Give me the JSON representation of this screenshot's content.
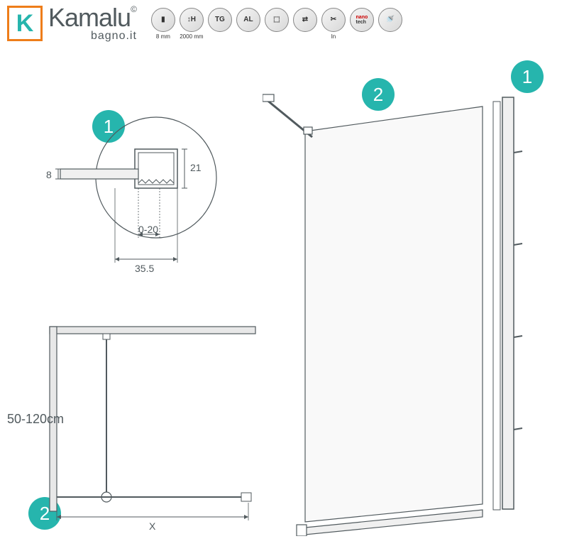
{
  "brand": {
    "letter": "K",
    "name": "Kamalu",
    "copyright": "©",
    "sub": "bagno.it"
  },
  "specs": [
    {
      "icon": "▮",
      "label": "8 mm"
    },
    {
      "icon": "↕H",
      "label": "2000 mm"
    },
    {
      "icon": "TG",
      "label": ""
    },
    {
      "icon": "AL",
      "label": ""
    },
    {
      "icon": "⬚",
      "label": ""
    },
    {
      "icon": "⇄",
      "label": ""
    },
    {
      "icon": "✂",
      "label": "In"
    },
    {
      "icon": "nano",
      "label": ""
    },
    {
      "icon": "🚿",
      "label": ""
    }
  ],
  "badges": {
    "b1": "1",
    "b2": "2"
  },
  "detail1": {
    "dim_8": "8",
    "dim_21": "21",
    "dim_020": "0-20",
    "dim_355": "35.5"
  },
  "detail2": {
    "range": "50-120cm",
    "x_label": "X"
  },
  "colors": {
    "accent": "#26b5ad",
    "orange": "#ee7d1a",
    "line": "#515a5e",
    "gray_fill": "#d0d0d0"
  }
}
